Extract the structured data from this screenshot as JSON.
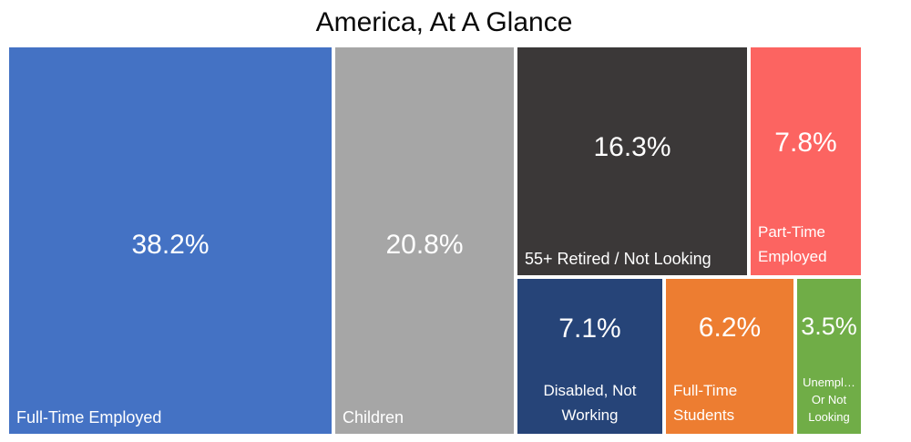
{
  "title": "America, At A Glance",
  "chart_data": {
    "type": "treemap",
    "title": "America, At A Glance",
    "legend": "none",
    "items": [
      {
        "label": "Full-Time Employed",
        "value_pct": 38.2,
        "pct_text": "38.2%",
        "color": "#4472C4"
      },
      {
        "label": "Children",
        "value_pct": 20.8,
        "pct_text": "20.8%",
        "color": "#A6A6A6"
      },
      {
        "label": "55+ Retired / Not Looking",
        "value_pct": 16.3,
        "pct_text": "16.3%",
        "color": "#3B3838"
      },
      {
        "label": "Part-Time Employed",
        "value_pct": 7.8,
        "pct_text": "7.8%",
        "color": "#FC6461"
      },
      {
        "label": "Disabled, Not Working",
        "value_pct": 7.1,
        "pct_text": "7.1%",
        "color": "#264478"
      },
      {
        "label": "Full-Time Students",
        "value_pct": 6.2,
        "pct_text": "6.2%",
        "color": "#ED7D31"
      },
      {
        "label": "Unempl… Or Not Looking",
        "value_pct": 3.5,
        "pct_text": "3.5%",
        "color": "#70AD47"
      }
    ]
  }
}
